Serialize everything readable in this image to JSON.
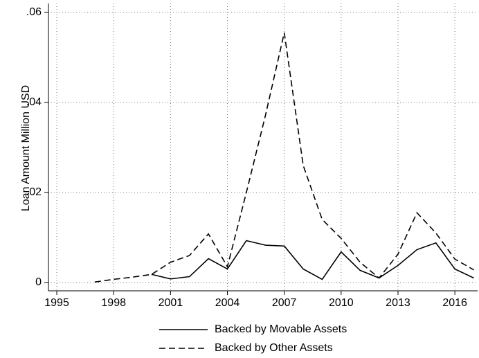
{
  "chart_data": {
    "type": "line",
    "y_label": "Loan Amount Million USD",
    "x": [
      1997,
      1998,
      1999,
      2000,
      2001,
      2002,
      2003,
      2004,
      2005,
      2006,
      2007,
      2008,
      2009,
      2010,
      2011,
      2012,
      2013,
      2014,
      2015,
      2016,
      2017
    ],
    "series": [
      {
        "name": "Backed by Movable Assets",
        "color": "#000000",
        "dash": "solid",
        "values": [
          null,
          null,
          null,
          0.0018,
          0.0008,
          0.0013,
          0.0053,
          0.003,
          0.0093,
          0.0083,
          0.0081,
          0.003,
          0.0007,
          0.0068,
          0.0027,
          0.001,
          0.0038,
          0.0073,
          0.0088,
          0.003,
          0.001
        ]
      },
      {
        "name": "Backed by Other Assets",
        "color": "#000000",
        "dash": "dashed",
        "values": [
          0.0001,
          0.0007,
          0.0012,
          0.0018,
          0.0045,
          0.006,
          0.0108,
          0.0035,
          0.02,
          0.037,
          0.0555,
          0.026,
          0.014,
          0.0098,
          0.0045,
          0.001,
          0.0063,
          0.0155,
          0.011,
          0.0052,
          0.0028
        ]
      }
    ],
    "xlim": [
      1994.56,
      2017.2
    ],
    "xticks": [
      1995,
      1998,
      2001,
      2004,
      2007,
      2010,
      2013,
      2016
    ],
    "ylim": [
      -0.00185,
      0.062
    ],
    "yticks": [
      0,
      {
        "value": 0.02,
        "label": ".02"
      },
      {
        "value": 0.04,
        "label": ".04"
      },
      {
        "value": 0.06,
        "label": ".06"
      }
    ],
    "grid": true,
    "legend": "bottom"
  }
}
